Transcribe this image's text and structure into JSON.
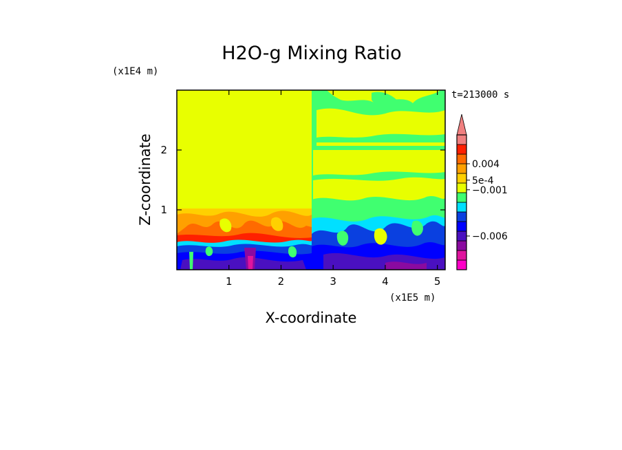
{
  "chart_data": {
    "type": "heatmap",
    "title": "H2O-g Mixing Ratio",
    "xlabel": "X-coordinate",
    "ylabel": "Z-coordinate",
    "x_scale_label": "(x1E5 m)",
    "y_scale_label": "(x1E4 m)",
    "time_label": "t=213000 s",
    "xlim": [
      0,
      5.15
    ],
    "ylim": [
      0,
      3.0
    ],
    "x_ticks": [
      1,
      2,
      3,
      4,
      5
    ],
    "y_ticks": [
      1,
      2
    ],
    "x_tick_labels": [
      "1",
      "2",
      "3",
      "4",
      "5"
    ],
    "y_tick_labels": [
      "1",
      "2"
    ],
    "colorbar": {
      "levels_bottom_to_top": [
        {
          "color": "#ff00c8"
        },
        {
          "color": "#e0149e"
        },
        {
          "color": "#8a0aa0"
        },
        {
          "color": "#4a10c0"
        },
        {
          "color": "#0000ff"
        },
        {
          "color": "#0a40e0"
        },
        {
          "color": "#00e0ff"
        },
        {
          "color": "#40ff70"
        },
        {
          "color": "#e8ff00"
        },
        {
          "color": "#ffd000"
        },
        {
          "color": "#ffa000"
        },
        {
          "color": "#ff6a00"
        },
        {
          "color": "#ff2000"
        },
        {
          "color": "#f08080"
        }
      ],
      "labels": [
        {
          "text": "0.004",
          "level": 11.0
        },
        {
          "text": "5e-4",
          "level": 9.3
        },
        {
          "text": "−0.001",
          "level": 8.3
        },
        {
          "text": "−0.006",
          "level": 3.5
        }
      ],
      "extend": "max"
    },
    "regions": [
      {
        "desc": "upper domain",
        "x": [
          0,
          5.15
        ],
        "z": [
          0,
          3.0
        ],
        "color": "#e8ff00"
      },
      {
        "desc": "left boundary layer",
        "x": [
          0,
          2.6
        ],
        "z": [
          0.5,
          1.0
        ],
        "color": "#ffa000"
      },
      {
        "desc": "left lower mixed",
        "x": [
          0,
          2.6
        ],
        "z": [
          0,
          0.5
        ],
        "color": "#0a40e0"
      },
      {
        "desc": "right boundary layer",
        "x": [
          2.6,
          5.15
        ],
        "z": [
          0.5,
          1.05
        ],
        "color": "#40ff70"
      },
      {
        "desc": "right lower mixed",
        "x": [
          2.6,
          5.15
        ],
        "z": [
          0,
          0.6
        ],
        "color": "#0000ff"
      }
    ]
  }
}
